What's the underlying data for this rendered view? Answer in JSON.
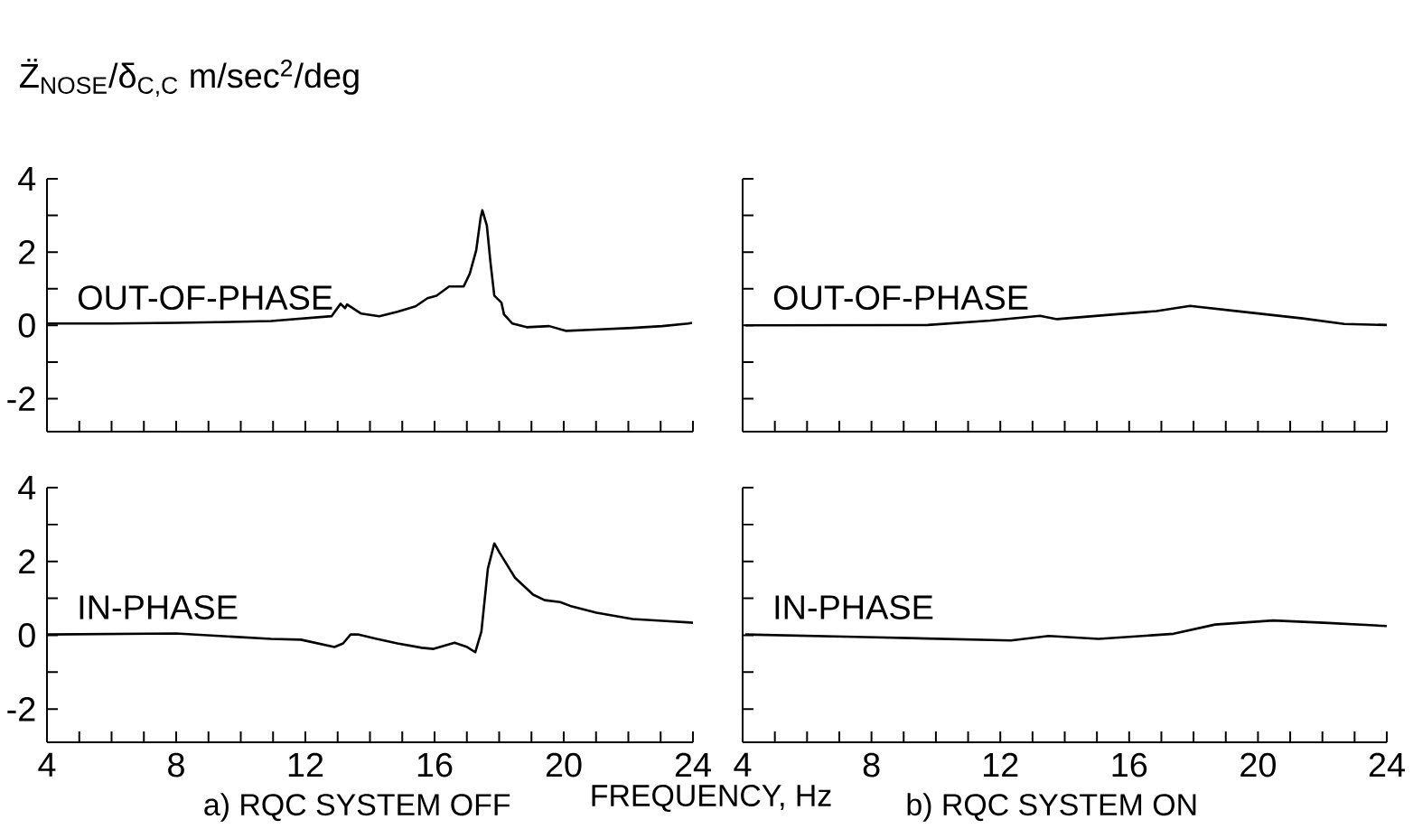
{
  "chart_data": [
    {
      "type": "line",
      "ylabel": "Z̈$_{NOSE}$/δ$_{C,C}$  m/sec$^{2}$/deg",
      "xlim": [
        4,
        24
      ],
      "ylim": [
        -2.9,
        4
      ],
      "tick_labels": "y",
      "xticks": [
        4,
        {
          "value": 5,
          "label": null
        },
        {
          "value": 6,
          "label": null
        },
        {
          "value": 7,
          "label": null
        },
        8,
        {
          "value": 9,
          "label": null
        },
        {
          "value": 10,
          "label": null
        },
        {
          "value": 11,
          "label": null
        },
        12,
        {
          "value": 13,
          "label": null
        },
        {
          "value": 14,
          "label": null
        },
        {
          "value": 15,
          "label": null
        },
        16,
        {
          "value": 17,
          "label": null
        },
        {
          "value": 18,
          "label": null
        },
        {
          "value": 19,
          "label": null
        },
        20,
        {
          "value": 21,
          "label": null
        },
        {
          "value": 22,
          "label": null
        },
        {
          "value": 23,
          "label": null
        },
        24
      ],
      "yticks": [
        -2,
        {
          "value": -1,
          "label": null
        },
        0,
        {
          "value": 1,
          "label": null
        },
        2,
        {
          "value": 3,
          "label": null
        },
        4
      ],
      "series": [
        {
          "name": "OUT-OF-PHASE",
          "color": "#000000",
          "x": [
            4,
            6,
            8,
            10,
            10.94,
            12.81,
            13.09,
            13.23,
            13.29,
            13.73,
            14.29,
            14.85,
            15.41,
            15.78,
            16.06,
            16.45,
            16.9,
            17.09,
            17.29,
            17.43,
            17.48,
            17.62,
            17.73,
            17.85,
            18.07,
            18.15,
            18.41,
            18.85,
            19.55,
            20.08,
            20.81,
            22.13,
            23.05,
            23.86,
            23.97
          ],
          "values": [
            0.05,
            0.05,
            0.07,
            0.1,
            0.12,
            0.25,
            0.59,
            0.47,
            0.57,
            0.32,
            0.25,
            0.37,
            0.52,
            0.74,
            0.81,
            1.06,
            1.06,
            1.41,
            2.05,
            2.96,
            3.14,
            2.72,
            1.73,
            0.81,
            0.62,
            0.3,
            0.05,
            -0.05,
            -0.02,
            -0.15,
            -0.12,
            -0.07,
            -0.02,
            0.05,
            0.07
          ]
        }
      ]
    },
    {
      "type": "line",
      "xlim": [
        4,
        24
      ],
      "ylim": [
        -2.9,
        4
      ],
      "tick_labels": false,
      "xticks": [
        4,
        {
          "value": 5,
          "label": null
        },
        {
          "value": 6,
          "label": null
        },
        {
          "value": 7,
          "label": null
        },
        8,
        {
          "value": 9,
          "label": null
        },
        {
          "value": 10,
          "label": null
        },
        {
          "value": 11,
          "label": null
        },
        12,
        {
          "value": 13,
          "label": null
        },
        {
          "value": 14,
          "label": null
        },
        {
          "value": 15,
          "label": null
        },
        16,
        {
          "value": 17,
          "label": null
        },
        {
          "value": 18,
          "label": null
        },
        {
          "value": 19,
          "label": null
        },
        20,
        {
          "value": 21,
          "label": null
        },
        {
          "value": 22,
          "label": null
        },
        {
          "value": 23,
          "label": null
        },
        24
      ],
      "yticks": [
        -2,
        {
          "value": -1,
          "label": null
        },
        0,
        {
          "value": 1,
          "label": null
        },
        2,
        {
          "value": 3,
          "label": null
        },
        4
      ],
      "series": [
        {
          "name": "OUT-OF-PHASE",
          "color": "#000000",
          "x": [
            4.08,
            9.75,
            11.69,
            13.23,
            13.76,
            15.56,
            16.85,
            17.89,
            19.43,
            21.39,
            22.68,
            24
          ],
          "values": [
            0,
            0.01,
            0.13,
            0.26,
            0.17,
            0.3,
            0.39,
            0.53,
            0.38,
            0.19,
            0.04,
            0.01
          ]
        }
      ]
    },
    {
      "type": "line",
      "xlabel": "FREQUENCY, Hz",
      "title": "a) RQC SYSTEM OFF",
      "xlim": [
        4,
        24
      ],
      "ylim": [
        -2.9,
        4
      ],
      "xticks": [
        4,
        {
          "value": 5,
          "label": null
        },
        {
          "value": 6,
          "label": null
        },
        {
          "value": 7,
          "label": null
        },
        8,
        {
          "value": 9,
          "label": null
        },
        {
          "value": 10,
          "label": null
        },
        {
          "value": 11,
          "label": null
        },
        12,
        {
          "value": 13,
          "label": null
        },
        {
          "value": 14,
          "label": null
        },
        {
          "value": 15,
          "label": null
        },
        16,
        {
          "value": 17,
          "label": null
        },
        {
          "value": 18,
          "label": null
        },
        {
          "value": 19,
          "label": null
        },
        20,
        {
          "value": 21,
          "label": null
        },
        {
          "value": 22,
          "label": null
        },
        {
          "value": 23,
          "label": null
        },
        24
      ],
      "yticks": [
        -2,
        {
          "value": -1,
          "label": null
        },
        0,
        {
          "value": 1,
          "label": null
        },
        2,
        {
          "value": 3,
          "label": null
        },
        4
      ],
      "series": [
        {
          "name": "IN-PHASE",
          "color": "#000000",
          "x": [
            4,
            8,
            10.94,
            11.86,
            12.9,
            13.17,
            13.4,
            13.65,
            14.21,
            14.85,
            15.61,
            15.97,
            16.62,
            17.01,
            17.26,
            17.45,
            17.65,
            17.85,
            18.01,
            18.49,
            19.05,
            19.41,
            19.89,
            20.25,
            21.01,
            22.13,
            23.05,
            24
          ],
          "values": [
            0.02,
            0.05,
            -0.1,
            -0.12,
            -0.32,
            -0.22,
            0.02,
            0.02,
            -0.1,
            -0.22,
            -0.34,
            -0.37,
            -0.2,
            -0.32,
            -0.46,
            0.1,
            1.8,
            2.49,
            2.24,
            1.56,
            1.1,
            0.95,
            0.9,
            0.78,
            0.61,
            0.44,
            0.39,
            0.34
          ]
        }
      ]
    },
    {
      "type": "line",
      "title": "b) RQC SYSTEM ON",
      "xlim": [
        4,
        24
      ],
      "ylim": [
        -2.9,
        4
      ],
      "tick_labels": "x",
      "xticks": [
        4,
        {
          "value": 5,
          "label": null
        },
        {
          "value": 6,
          "label": null
        },
        {
          "value": 7,
          "label": null
        },
        8,
        {
          "value": 9,
          "label": null
        },
        {
          "value": 10,
          "label": null
        },
        {
          "value": 11,
          "label": null
        },
        12,
        {
          "value": 13,
          "label": null
        },
        {
          "value": 14,
          "label": null
        },
        {
          "value": 15,
          "label": null
        },
        16,
        {
          "value": 17,
          "label": null
        },
        {
          "value": 18,
          "label": null
        },
        {
          "value": 19,
          "label": null
        },
        20,
        {
          "value": 21,
          "label": null
        },
        {
          "value": 22,
          "label": null
        },
        {
          "value": 23,
          "label": null
        },
        24
      ],
      "yticks": [
        -2,
        {
          "value": -1,
          "label": null
        },
        0,
        {
          "value": 1,
          "label": null
        },
        2,
        {
          "value": 3,
          "label": null
        },
        4
      ],
      "series": [
        {
          "name": "IN-PHASE",
          "color": "#000000",
          "x": [
            4.08,
            7.8,
            12.33,
            13.5,
            15.05,
            17.38,
            18.67,
            20.47,
            22.04,
            24
          ],
          "values": [
            0.02,
            -0.05,
            -0.14,
            -0.02,
            -0.1,
            0.04,
            0.29,
            0.4,
            0.34,
            0.25
          ]
        }
      ]
    }
  ]
}
